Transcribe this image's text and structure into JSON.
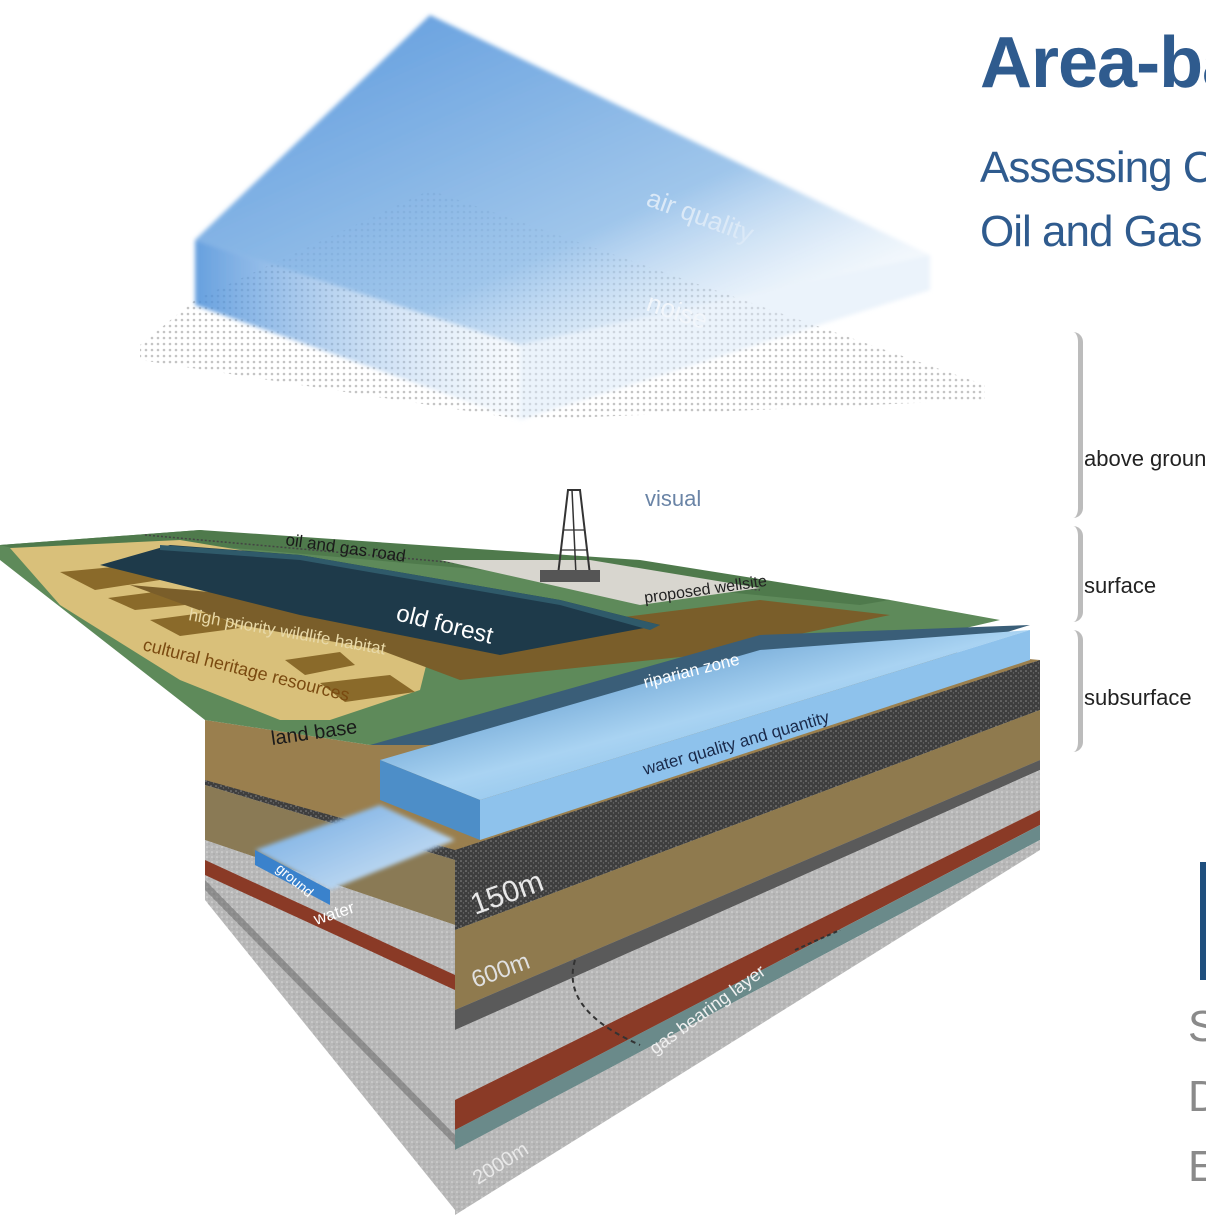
{
  "header": {
    "title": "Area-ba",
    "subtitle_line1": "Assessing C",
    "subtitle_line2": "Oil and Gas"
  },
  "tiers": [
    "above ground",
    "surface",
    "subsurface"
  ],
  "side_letters": [
    "S",
    "D",
    "E"
  ],
  "layers": {
    "air_quality": "air quality",
    "noise": "noise",
    "visual": "visual",
    "oil_gas_road": "oil and gas road",
    "proposed_wellsite": "proposed wellsite",
    "old_forest": "old forest",
    "wildlife_habitat": "high priority wildlife habitat",
    "cultural_heritage": "cultural heritage resources",
    "riparian_zone": "riparian zone",
    "land_base": "land base",
    "water_quality": "water quality and quantity",
    "ground_water_1": "ground",
    "ground_water_2": "water",
    "gas_bearing_layer": "gas bearing layer"
  },
  "depths": [
    "150m",
    "600m",
    "2000m"
  ],
  "colors": {
    "title_blue": "#2f5b8e",
    "air_blue": "#4a8fd6",
    "land_green": "#5e8a5a",
    "sand": "#d9c07a",
    "soil": "#8a6a2a",
    "forest": "#1e3a4a",
    "water": "#7cb8e8",
    "rust": "#8a3a26"
  }
}
